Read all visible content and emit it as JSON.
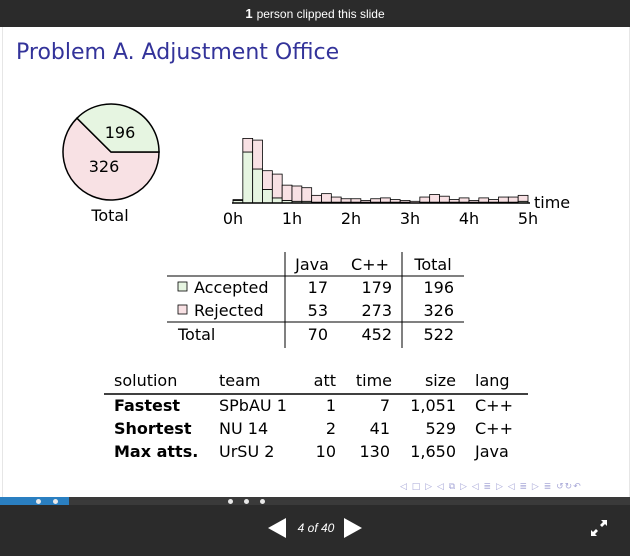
{
  "topbar": {
    "count": "1",
    "text": "person clipped this slide"
  },
  "slide": {
    "title": "Problem A. Adjustment Office",
    "pie": {
      "accepted": "196",
      "rejected": "326",
      "label": "Total"
    },
    "histogram": {
      "axis_label": "time",
      "ticks": [
        "0h",
        "1h",
        "2h",
        "3h",
        "4h",
        "5h"
      ]
    },
    "summary": {
      "headers": [
        "Java",
        "C++",
        "Total"
      ],
      "rows": [
        {
          "label": "Accepted",
          "java": "17",
          "cpp": "179",
          "total": "196",
          "color": "#e6f5e1"
        },
        {
          "label": "Rejected",
          "java": "53",
          "cpp": "273",
          "total": "326",
          "color": "#f8e1e4"
        },
        {
          "label": "Total",
          "java": "70",
          "cpp": "452",
          "total": "522"
        }
      ]
    },
    "solutions": {
      "headers": [
        "solution",
        "team",
        "att",
        "time",
        "size",
        "lang"
      ],
      "rows": [
        {
          "solution": "Fastest",
          "team": "SPbAU 1",
          "att": "1",
          "time": "7",
          "size": "1,051",
          "lang": "C++"
        },
        {
          "solution": "Shortest",
          "team": "NU 14",
          "att": "2",
          "time": "41",
          "size": "529",
          "lang": "C++"
        },
        {
          "solution": "Max atts.",
          "team": "UrSU 2",
          "att": "10",
          "time": "130",
          "size": "1,650",
          "lang": "Java"
        }
      ]
    }
  },
  "chart_data": [
    {
      "type": "pie",
      "categories": [
        "Accepted",
        "Rejected"
      ],
      "values": [
        196,
        326
      ],
      "colors": [
        "#e6f5e1",
        "#f8e1e4"
      ],
      "title": "Total"
    },
    {
      "type": "bar",
      "xlabel": "time",
      "xlim": [
        0,
        5
      ],
      "tick_labels": [
        "0h",
        "1h",
        "2h",
        "3h",
        "4h",
        "5h"
      ],
      "bin_minutes": 10,
      "series": [
        {
          "name": "Accepted",
          "color": "#e6f5e1",
          "values": [
            3,
            60,
            40,
            16,
            6,
            3,
            2,
            2,
            1,
            1,
            1,
            1,
            1,
            1,
            1,
            1,
            1,
            1,
            0,
            1,
            1,
            1,
            1,
            1,
            1,
            1,
            1,
            1,
            1,
            2
          ]
        },
        {
          "name": "Rejected",
          "color": "#f8e1e4",
          "values": [
            1,
            16,
            34,
            22,
            28,
            18,
            18,
            16,
            8,
            10,
            6,
            4,
            4,
            2,
            4,
            5,
            3,
            2,
            2,
            6,
            9,
            7,
            3,
            5,
            2,
            5,
            3,
            6,
            6,
            7
          ]
        }
      ]
    }
  ],
  "nav": {
    "symbols": "◁ □ ▷ ◁ ⧉ ▷ ◁ ≣ ▷ ◁ ≣ ▷ ≣ ↺↻↶",
    "counter": "4 of 40",
    "progress": 0.11,
    "section_dots": 5
  }
}
